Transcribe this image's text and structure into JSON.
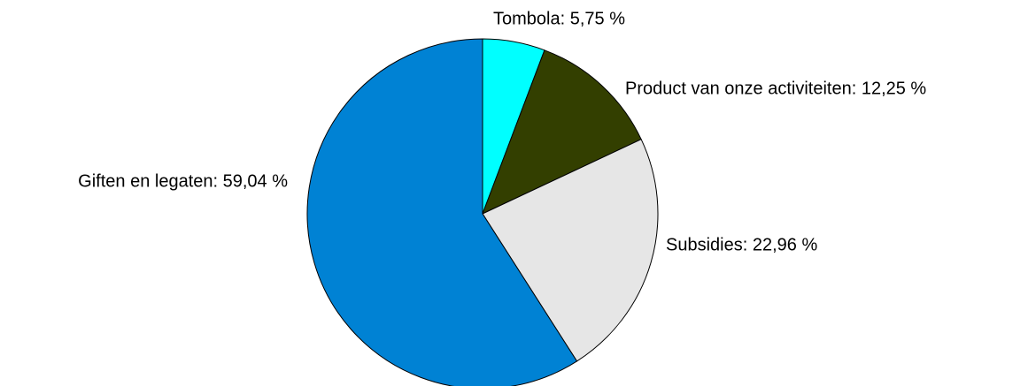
{
  "chart_data": {
    "type": "pie",
    "values": [
      5.75,
      12.25,
      22.96,
      59.04
    ],
    "value_labels": [
      "Tombola: 5,75 %",
      "Product van onze activiteiten: 12,25 %",
      "Subsidies: 22,96 %",
      "Giften en legaten: 59,04 %"
    ],
    "colors": [
      "#00ffff",
      "#333f00",
      "#e6e6e6",
      "#0082d4"
    ]
  }
}
